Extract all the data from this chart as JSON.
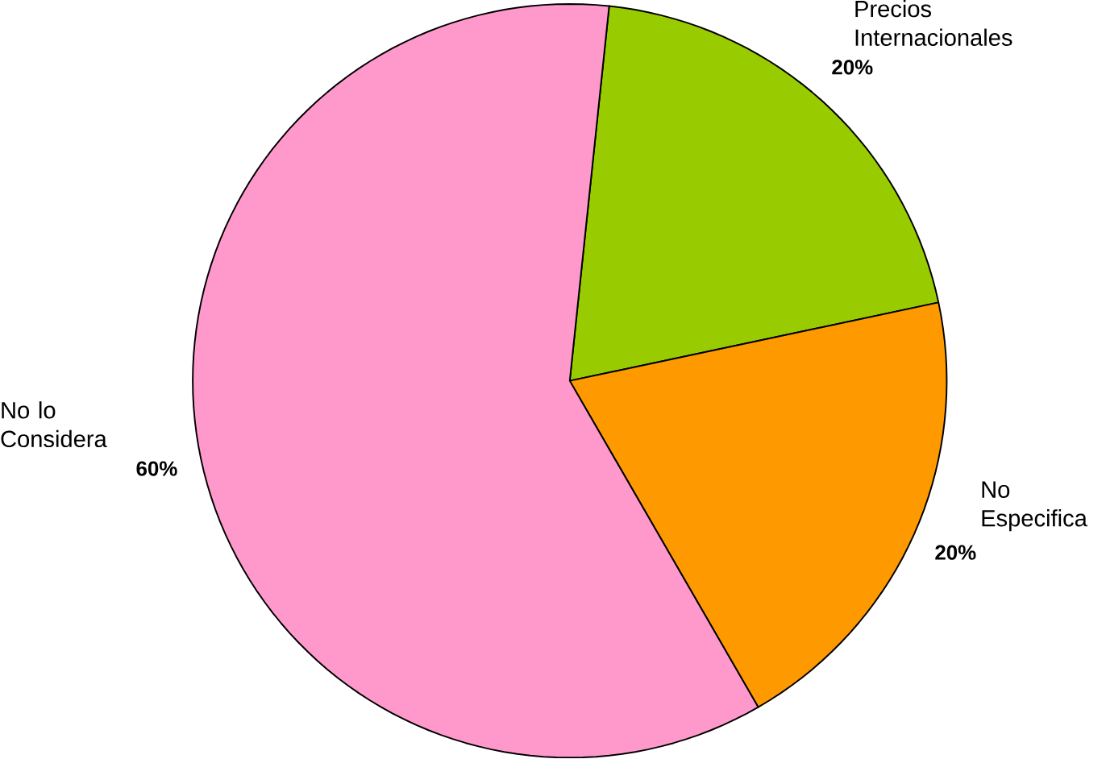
{
  "chart_data": {
    "type": "pie",
    "categories": [
      "Precios Internacionales",
      "No Especifica",
      "No lo Considera"
    ],
    "values": [
      20,
      20,
      60
    ],
    "colors": [
      "#99cc00",
      "#ff9900",
      "#ff99cc"
    ],
    "value_labels": [
      "20%",
      "20%",
      "60%"
    ],
    "legend": false
  }
}
